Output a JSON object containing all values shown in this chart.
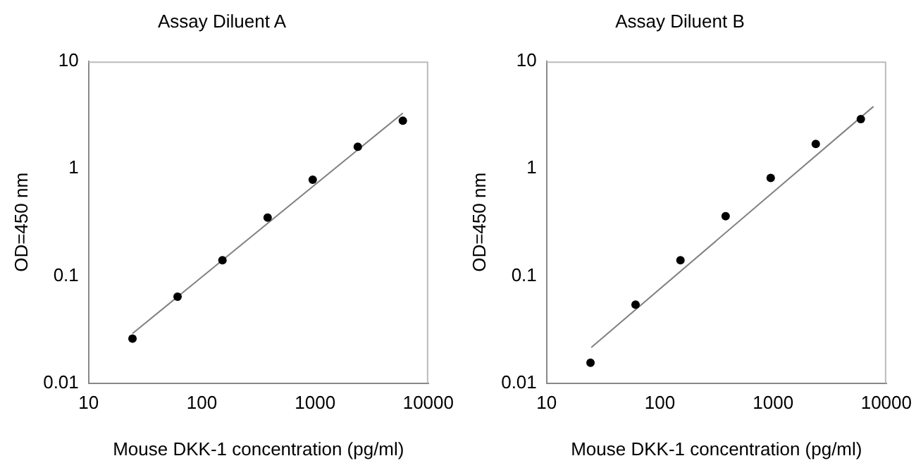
{
  "chart_data": [
    {
      "type": "scatter",
      "title": "Assay Diluent A",
      "xlabel": "Mouse DKK-1 concentration (pg/ml)",
      "ylabel": "OD=450 nm",
      "log": "xy",
      "grid": false,
      "legend": false,
      "x": [
        24.4,
        61,
        152,
        381,
        953,
        2383,
        5958
      ],
      "xlim": [
        10,
        10000
      ],
      "xticks": [
        10,
        100,
        1000,
        10000
      ],
      "ylim": [
        0.01,
        10
      ],
      "yticks": [
        0.01,
        0.1,
        1,
        10
      ],
      "series": [
        {
          "color": "#000000",
          "marker": "circle",
          "values": [
            0.026,
            0.064,
            0.14,
            0.35,
            0.79,
            1.6,
            2.8
          ]
        },
        {
          "type": "line",
          "color": "#808080",
          "marker": "none",
          "x": [
            24.4,
            5958
          ],
          "values": [
            0.029,
            3.3
          ]
        }
      ]
    },
    {
      "type": "scatter",
      "title": "Assay Diluent B",
      "xlabel": "Mouse DKK-1 concentration (pg/ml)",
      "ylabel": "OD=450 nm",
      "log": "xy",
      "grid": false,
      "legend": false,
      "x": [
        24.4,
        61,
        152,
        381,
        953,
        2383,
        5958
      ],
      "xlim": [
        10,
        10000
      ],
      "xticks": [
        10,
        100,
        1000,
        10000
      ],
      "ylim": [
        0.01,
        10
      ],
      "yticks": [
        0.01,
        0.1,
        1,
        10
      ],
      "series": [
        {
          "color": "#000000",
          "marker": "circle",
          "values": [
            0.0155,
            0.054,
            0.14,
            0.36,
            0.82,
            1.7,
            2.9
          ]
        },
        {
          "type": "line",
          "color": "#808080",
          "marker": "none",
          "x": [
            24.8,
            7700
          ],
          "values": [
            0.0215,
            3.8
          ]
        }
      ]
    }
  ]
}
